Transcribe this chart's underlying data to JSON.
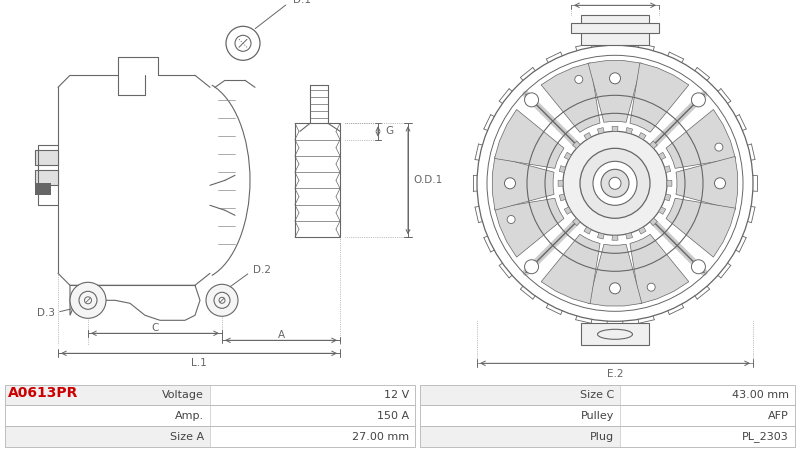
{
  "title": "A0613PR",
  "title_color": "#cc0000",
  "bg_color": "#ffffff",
  "line_color": "#666666",
  "table_row_bg": [
    "#f0f0f0",
    "#ffffff",
    "#f0f0f0"
  ],
  "table_data": [
    [
      "Voltage",
      "12 V",
      "Size C",
      "43.00 mm"
    ],
    [
      "Amp.",
      "150 A",
      "Pulley",
      "AFP"
    ],
    [
      "Size A",
      "27.00 mm",
      "Plug",
      "PL_2303"
    ]
  ],
  "figsize": [
    8.0,
    4.67
  ],
  "dpi": 100
}
